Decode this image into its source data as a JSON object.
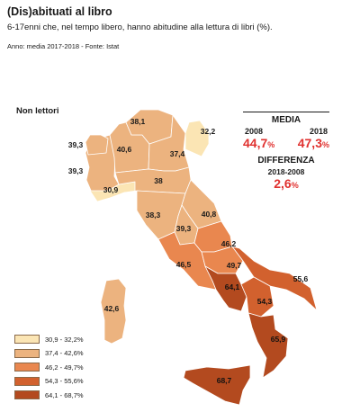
{
  "header": {
    "title": "(Dis)abituati al libro",
    "subtitle": "6-17enni che, nel tempo libero, hanno abitudine alla lettura di libri (%).",
    "source": "Anno: media 2017-2018 - Fonte: Istat"
  },
  "map": {
    "section_label": "Non lettori",
    "regions": [
      {
        "name": "Valle d'Aosta/Piemonte",
        "label": "39,3",
        "value": 39.3,
        "class": 1
      },
      {
        "name": "Piemonte",
        "label": "39,3",
        "value": 39.3,
        "class": 1
      },
      {
        "name": "Lombardia",
        "label": "40,6",
        "value": 40.6,
        "class": 1
      },
      {
        "name": "Trentino-Alto Adige",
        "label": "38,1",
        "value": 38.1,
        "class": 1
      },
      {
        "name": "Veneto",
        "label": "37,4",
        "value": 37.4,
        "class": 1
      },
      {
        "name": "Friuli-Venezia Giulia",
        "label": "32,2",
        "value": 32.2,
        "class": 0
      },
      {
        "name": "Liguria",
        "label": "30,9",
        "value": 30.9,
        "class": 0
      },
      {
        "name": "Emilia-Romagna",
        "label": "38",
        "value": 38.0,
        "class": 1
      },
      {
        "name": "Toscana",
        "label": "38,3",
        "value": 38.3,
        "class": 1
      },
      {
        "name": "Umbria",
        "label": "40,8",
        "value": 40.8,
        "class": 1
      },
      {
        "name": "Marche",
        "label": "39,3",
        "value": 39.3,
        "class": 1
      },
      {
        "name": "Lazio",
        "label": "46,5",
        "value": 46.5,
        "class": 2
      },
      {
        "name": "Abruzzo",
        "label": "46,2",
        "value": 46.2,
        "class": 2
      },
      {
        "name": "Molise",
        "label": "49,7",
        "value": 49.7,
        "class": 2
      },
      {
        "name": "Campania",
        "label": "64,1",
        "value": 64.1,
        "class": 4
      },
      {
        "name": "Puglia",
        "label": "55,6",
        "value": 55.6,
        "class": 3
      },
      {
        "name": "Basilicata",
        "label": "54,3",
        "value": 54.3,
        "class": 3
      },
      {
        "name": "Calabria",
        "label": "65,9",
        "value": 65.9,
        "class": 4
      },
      {
        "name": "Sicilia",
        "label": "68,7",
        "value": 68.7,
        "class": 4
      },
      {
        "name": "Sardegna",
        "label": "42,6",
        "value": 42.6,
        "class": 1
      }
    ]
  },
  "stats": {
    "media_title": "MEDIA",
    "year1": "2008",
    "year2": "2018",
    "value1": "44,7",
    "value2": "47,3",
    "unit": "%",
    "diff_title": "DIFFERENZA",
    "diff_range": "2018-2008",
    "diff_value": "2,6",
    "diff_unit": "%"
  },
  "legend": [
    {
      "label": "30,9 - 32,2%",
      "color": "#fbe5b4"
    },
    {
      "label": "37,4 - 42,6%",
      "color": "#ecb37f"
    },
    {
      "label": "46,2 - 49,7%",
      "color": "#e9874f"
    },
    {
      "label": "54,3 - 55,6%",
      "color": "#d2612e"
    },
    {
      "label": "64,1 - 68,7%",
      "color": "#b34a1f"
    }
  ]
}
